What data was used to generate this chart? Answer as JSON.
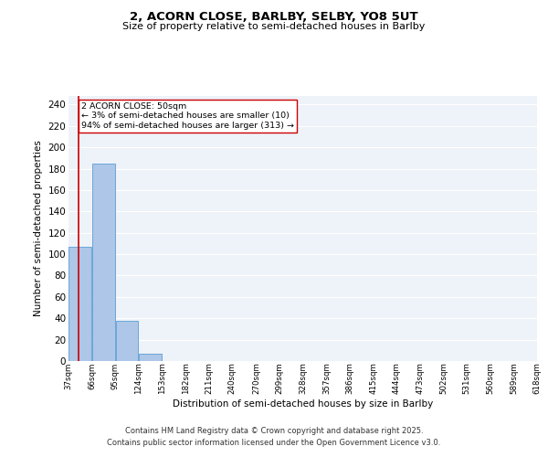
{
  "title_line1": "2, ACORN CLOSE, BARLBY, SELBY, YO8 5UT",
  "title_line2": "Size of property relative to semi-detached houses in Barlby",
  "xlabel": "Distribution of semi-detached houses by size in Barlby",
  "ylabel": "Number of semi-detached properties",
  "footer_line1": "Contains HM Land Registry data © Crown copyright and database right 2025.",
  "footer_line2": "Contains public sector information licensed under the Open Government Licence v3.0.",
  "annotation_line1": "2 ACORN CLOSE: 50sqm",
  "annotation_line2": "← 3% of semi-detached houses are smaller (10)",
  "annotation_line3": "94% of semi-detached houses are larger (313) →",
  "bar_edges": [
    37,
    66,
    95,
    124,
    153,
    182,
    211,
    240,
    270,
    299,
    328,
    357,
    386,
    415,
    444,
    473,
    502,
    531,
    560,
    589,
    618
  ],
  "bar_heights": [
    107,
    185,
    38,
    7,
    0,
    0,
    0,
    0,
    0,
    0,
    0,
    0,
    0,
    0,
    0,
    0,
    0,
    0,
    0,
    0
  ],
  "bar_color": "#aec6e8",
  "bar_edgecolor": "#5a9fd4",
  "property_line_x": 50,
  "annotation_box_color": "#ffffff",
  "annotation_box_edgecolor": "#cc0000",
  "property_line_color": "#cc0000",
  "ylim": [
    0,
    248
  ],
  "yticks": [
    0,
    20,
    40,
    60,
    80,
    100,
    120,
    140,
    160,
    180,
    200,
    220,
    240
  ],
  "background_color": "#eef2f9",
  "grid_color": "#ffffff",
  "tick_labels": [
    "37sqm",
    "66sqm",
    "95sqm",
    "124sqm",
    "153sqm",
    "182sqm",
    "211sqm",
    "240sqm",
    "270sqm",
    "299sqm",
    "328sqm",
    "357sqm",
    "386sqm",
    "415sqm",
    "444sqm",
    "473sqm",
    "502sqm",
    "531sqm",
    "560sqm",
    "589sqm",
    "618sqm"
  ]
}
